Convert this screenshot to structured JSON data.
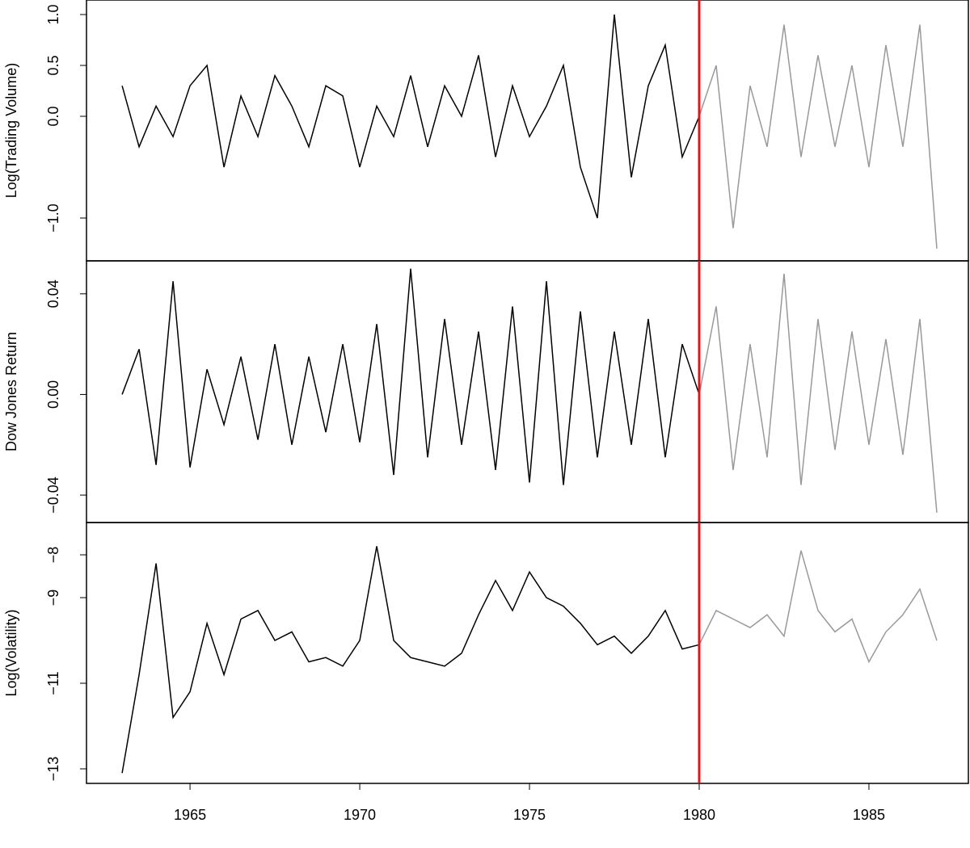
{
  "chart_data": [
    {
      "type": "line",
      "y_label": "Log(Trading Volume)",
      "xlim": [
        1961.95,
        1987.93
      ],
      "ylim": [
        -1.421,
        1.143
      ],
      "yticks": [
        {
          "value": 1,
          "label": "1.0"
        },
        0.5,
        {
          "value": 0,
          "label": "0.0"
        },
        {
          "value": -1,
          "label": "−1.0"
        }
      ],
      "vline": 1980,
      "vline_color": "#e8141c",
      "series": [
        {
          "color": "#000000",
          "x": [
            1963,
            1963.5,
            1964,
            1964.5,
            1965,
            1965.5,
            1966,
            1966.5,
            1967,
            1967.5,
            1968,
            1968.5,
            1969,
            1969.5,
            1970,
            1970.5,
            1971,
            1971.5,
            1972,
            1972.5,
            1973,
            1973.5,
            1974,
            1974.5,
            1975,
            1975.5,
            1976,
            1976.5,
            1977,
            1977.5,
            1978,
            1978.5,
            1979,
            1979.5,
            1980
          ],
          "values": [
            0.3,
            -0.3,
            0.1,
            -0.2,
            0.3,
            0.5,
            -0.5,
            0.2,
            -0.2,
            0.4,
            0.1,
            -0.3,
            0.3,
            0.2,
            -0.5,
            0.1,
            -0.2,
            0.4,
            -0.3,
            0.3,
            0.0,
            0.6,
            -0.4,
            0.3,
            -0.2,
            0.1,
            0.5,
            -0.5,
            -1.0,
            1.0,
            -0.6,
            0.3,
            0.7,
            -0.4,
            0.0
          ]
        },
        {
          "color": "#999999",
          "x": [
            1980,
            1980.5,
            1981,
            1981.5,
            1982,
            1982.5,
            1983,
            1983.5,
            1984,
            1984.5,
            1985,
            1985.5,
            1986,
            1986.5,
            1987
          ],
          "values": [
            0.0,
            0.5,
            -1.1,
            0.3,
            -0.3,
            0.9,
            -0.4,
            0.6,
            -0.3,
            0.5,
            -0.5,
            0.7,
            -0.3,
            0.9,
            -1.3
          ]
        }
      ]
    },
    {
      "type": "line",
      "y_label": "Dow Jones Return",
      "xlim": [
        1961.95,
        1987.93
      ],
      "ylim": [
        -0.0509,
        0.0531
      ],
      "yticks": [
        0.04,
        {
          "value": 0,
          "label": "0.00"
        },
        {
          "value": -0.04,
          "label": "−0.04"
        }
      ],
      "vline": 1980,
      "vline_color": "#e8141c",
      "series": [
        {
          "color": "#000000",
          "x": [
            1963,
            1963.5,
            1964,
            1964.5,
            1965,
            1965.5,
            1966,
            1966.5,
            1967,
            1967.5,
            1968,
            1968.5,
            1969,
            1969.5,
            1970,
            1970.5,
            1971,
            1971.5,
            1972,
            1972.5,
            1973,
            1973.5,
            1974,
            1974.5,
            1975,
            1975.5,
            1976,
            1976.5,
            1977,
            1977.5,
            1978,
            1978.5,
            1979,
            1979.5,
            1980
          ],
          "values": [
            0.0,
            0.018,
            -0.028,
            0.045,
            -0.029,
            0.01,
            -0.012,
            0.015,
            -0.018,
            0.02,
            -0.02,
            0.015,
            -0.015,
            0.02,
            -0.019,
            0.028,
            -0.032,
            0.05,
            -0.025,
            0.03,
            -0.02,
            0.025,
            -0.03,
            0.035,
            -0.035,
            0.045,
            -0.036,
            0.033,
            -0.025,
            0.025,
            -0.02,
            0.03,
            -0.025,
            0.02,
            0.0
          ]
        },
        {
          "color": "#999999",
          "x": [
            1980,
            1980.5,
            1981,
            1981.5,
            1982,
            1982.5,
            1983,
            1983.5,
            1984,
            1984.5,
            1985,
            1985.5,
            1986,
            1986.5,
            1987
          ],
          "values": [
            0.0,
            0.035,
            -0.03,
            0.02,
            -0.025,
            0.048,
            -0.036,
            0.03,
            -0.022,
            0.025,
            -0.02,
            0.022,
            -0.024,
            0.03,
            -0.047
          ]
        }
      ]
    },
    {
      "type": "line",
      "y_label": "Log(Volatility)",
      "xlim": [
        1961.95,
        1987.93
      ],
      "ylim": [
        -13.34,
        -7.245
      ],
      "yticks": [
        {
          "value": -8,
          "label": "−8"
        },
        {
          "value": -9,
          "label": "−9"
        },
        {
          "value": -11,
          "label": "−11"
        },
        {
          "value": -13,
          "label": "−13"
        }
      ],
      "xticks": [
        1965,
        1970,
        1975,
        1980,
        1985
      ],
      "vline": 1980,
      "vline_color": "#e8141c",
      "series": [
        {
          "color": "#000000",
          "x": [
            1963,
            1963.5,
            1964,
            1964.5,
            1965,
            1965.5,
            1966,
            1966.5,
            1967,
            1967.5,
            1968,
            1968.5,
            1969,
            1969.5,
            1970,
            1970.5,
            1971,
            1971.5,
            1972,
            1972.5,
            1973,
            1973.5,
            1974,
            1974.5,
            1975,
            1975.5,
            1976,
            1976.5,
            1977,
            1977.5,
            1978,
            1978.5,
            1979,
            1979.5,
            1980
          ],
          "values": [
            -13.1,
            -10.8,
            -8.2,
            -11.8,
            -11.2,
            -9.6,
            -10.8,
            -9.5,
            -9.3,
            -10.0,
            -9.8,
            -10.5,
            -10.4,
            -10.6,
            -10.0,
            -7.8,
            -10.0,
            -10.4,
            -10.5,
            -10.6,
            -10.3,
            -9.4,
            -8.6,
            -9.3,
            -8.4,
            -9.0,
            -9.2,
            -9.6,
            -10.1,
            -9.9,
            -10.3,
            -9.9,
            -9.3,
            -10.2,
            -10.1
          ]
        },
        {
          "color": "#999999",
          "x": [
            1980,
            1980.5,
            1981,
            1981.5,
            1982,
            1982.5,
            1983,
            1983.5,
            1984,
            1984.5,
            1985,
            1985.5,
            1986,
            1986.5,
            1987
          ],
          "values": [
            -10.1,
            -9.3,
            -9.5,
            -9.7,
            -9.4,
            -9.9,
            -7.9,
            -9.3,
            -9.8,
            -9.5,
            -10.5,
            -9.8,
            -9.4,
            -8.8,
            -10.0
          ]
        }
      ]
    }
  ]
}
